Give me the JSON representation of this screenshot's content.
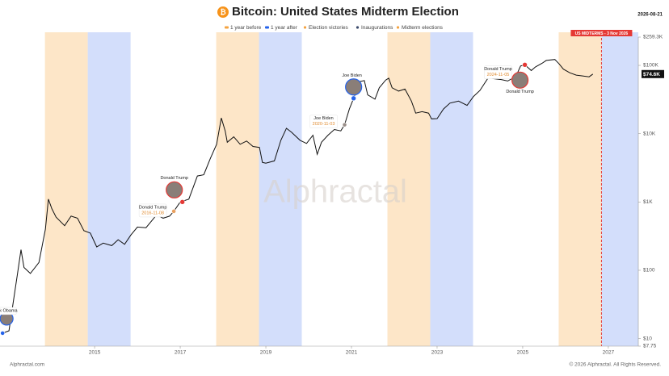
{
  "chart_data": {
    "type": "line",
    "title": "Bitcoin: United States Midterm Election",
    "date": "2026-08-21",
    "color": "#111111",
    "log_y": true,
    "xlim": [
      2012.79,
      2027.7
    ],
    "ylim": [
      7.75,
      259300
    ],
    "xticks": [
      2015,
      2017,
      2019,
      2021,
      2023,
      2025,
      2027
    ],
    "yticks": [
      {
        "value": 7.75,
        "label": "$7.75"
      },
      {
        "value": 10,
        "label": "$10"
      },
      {
        "value": 100,
        "label": "$100"
      },
      {
        "value": 1000,
        "label": "$1K"
      },
      {
        "value": 10000,
        "label": "$10K"
      },
      {
        "value": 100000,
        "label": "$100K"
      },
      {
        "value": 259300,
        "label": "$259.3K"
      }
    ],
    "x": [
      2012.85,
      2013.0,
      2013.2,
      2013.28,
      2013.35,
      2013.5,
      2013.7,
      2013.85,
      2013.92,
      2014.0,
      2014.1,
      2014.3,
      2014.45,
      2014.6,
      2014.75,
      2014.9,
      2015.05,
      2015.2,
      2015.4,
      2015.55,
      2015.7,
      2015.85,
      2016.0,
      2016.2,
      2016.45,
      2016.6,
      2016.75,
      2016.85,
      2017.0,
      2017.2,
      2017.4,
      2017.55,
      2017.7,
      2017.85,
      2017.96,
      2018.05,
      2018.1,
      2018.25,
      2018.4,
      2018.55,
      2018.7,
      2018.85,
      2018.92,
      2019.0,
      2019.2,
      2019.35,
      2019.48,
      2019.6,
      2019.8,
      2019.95,
      2020.1,
      2020.2,
      2020.3,
      2020.45,
      2020.6,
      2020.75,
      2020.84,
      2020.95,
      2021.05,
      2021.2,
      2021.3,
      2021.38,
      2021.55,
      2021.65,
      2021.8,
      2021.87,
      2021.95,
      2022.1,
      2022.25,
      2022.4,
      2022.5,
      2022.65,
      2022.8,
      2022.87,
      2023.0,
      2023.15,
      2023.3,
      2023.5,
      2023.7,
      2023.85,
      2024.0,
      2024.2,
      2024.3,
      2024.5,
      2024.65,
      2024.84,
      2024.95,
      2025.05,
      2025.2,
      2025.3,
      2025.45,
      2025.55,
      2025.75,
      2025.85,
      2025.95,
      2026.1,
      2026.25,
      2026.4,
      2026.55,
      2026.64
    ],
    "values": [
      12,
      13,
      90,
      200,
      110,
      90,
      130,
      400,
      1100,
      800,
      600,
      450,
      620,
      580,
      380,
      350,
      220,
      250,
      230,
      280,
      240,
      330,
      430,
      420,
      650,
      580,
      620,
      730,
      1000,
      1100,
      2400,
      2500,
      4300,
      7000,
      17000,
      11000,
      7500,
      9000,
      7000,
      7800,
      6500,
      6300,
      3800,
      3700,
      4000,
      8000,
      12000,
      10500,
      8000,
      7200,
      9500,
      5000,
      7500,
      9500,
      11500,
      11000,
      13500,
      23000,
      33000,
      58000,
      60000,
      37000,
      32000,
      47000,
      61000,
      65000,
      47000,
      42000,
      45000,
      30000,
      20000,
      21000,
      20000,
      16500,
      16600,
      23000,
      28000,
      30000,
      26000,
      35000,
      43000,
      67000,
      64000,
      62000,
      59000,
      69000,
      98000,
      102000,
      84000,
      95000,
      107000,
      118000,
      122000,
      105000,
      88000,
      78000,
      72000,
      70000,
      68000,
      74600
    ],
    "current": {
      "value": 74600,
      "label": "$74.6K"
    },
    "legend": [
      {
        "name": "1 year before",
        "color": "#fde6c8"
      },
      {
        "name": "1 year after",
        "color": "#d3defb"
      },
      {
        "name": "Election victories",
        "color": "#f4a340"
      },
      {
        "name": "Inaugurations",
        "color": "#3b4a6b"
      },
      {
        "name": "Midterm elections",
        "color": "#f4a340"
      }
    ],
    "before_ranges": [
      [
        2013.84,
        2014.84
      ],
      [
        2017.84,
        2018.84
      ],
      [
        2021.84,
        2022.84
      ],
      [
        2025.84,
        2026.84
      ]
    ],
    "after_ranges": [
      [
        2014.84,
        2015.84
      ],
      [
        2018.84,
        2019.84
      ],
      [
        2022.84,
        2023.84
      ],
      [
        2026.84,
        2027.7
      ]
    ],
    "midterm": {
      "x": 2026.84,
      "label": "US MIDTERMS - 3 Nov 2026",
      "color": "#e53935"
    },
    "victories": [
      {
        "x": 2012.85,
        "value": 12,
        "color": "#2563eb",
        "labels": [
          "Barack Obama"
        ]
      },
      {
        "x": 2016.85,
        "value": 730,
        "color": "#e8a060",
        "labels": [
          "Donald Trump",
          "2016-11-08"
        ]
      },
      {
        "x": 2020.84,
        "value": 13500,
        "color": "#9a8f8a",
        "labels": [
          "Joe Biden",
          "2020-11-03"
        ]
      },
      {
        "x": 2024.84,
        "value": 69000,
        "color": "#9a8f8a",
        "labels": [
          "Donald Trump",
          "2024-11-05"
        ]
      }
    ],
    "inaugurations": [
      {
        "x": 2017.05,
        "value": 1000,
        "color": "#e53935",
        "labels": [
          "Donald Trump"
        ]
      },
      {
        "x": 2021.05,
        "value": 33000,
        "color": "#2563eb",
        "labels": [
          "Joe Biden"
        ]
      },
      {
        "x": 2025.05,
        "value": 102000,
        "color": "#e53935",
        "labels": [
          "Donald Trump"
        ]
      }
    ],
    "watermark": "Alphractal",
    "footer_left": "Alphractal.com",
    "footer_right": "© 2026 Alphractal. All Rights Reserved."
  }
}
